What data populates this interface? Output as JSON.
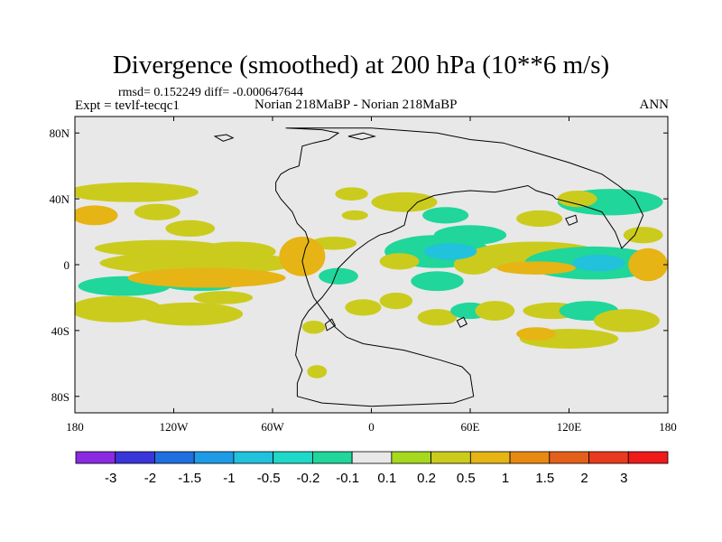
{
  "chart_data": {
    "type": "heatmap",
    "title": "Divergence (smoothed) at 200 hPa (10**6 m/s)",
    "stats_text": "rmsd= 0.152249 diff= -0.000647644",
    "left_label": "Expt = tevlf-tecqc1",
    "center_label": "Norian 218MaBP - Norian 218MaBP",
    "right_label": "ANN",
    "projection": "cylindrical equidistant, 180W to 180E, 90S to 90N",
    "xlim": [
      -180,
      180
    ],
    "ylim": [
      -90,
      90
    ],
    "x_ticks": [
      {
        "value": -180,
        "label": "180"
      },
      {
        "value": -120,
        "label": "120W"
      },
      {
        "value": -60,
        "label": "60W"
      },
      {
        "value": 0,
        "label": "0"
      },
      {
        "value": 60,
        "label": "60E"
      },
      {
        "value": 120,
        "label": "120E"
      },
      {
        "value": 180,
        "label": "180"
      }
    ],
    "y_ticks": [
      {
        "value": 80,
        "label": "80N"
      },
      {
        "value": 40,
        "label": "40N"
      },
      {
        "value": 0,
        "label": "0"
      },
      {
        "value": -40,
        "label": "40S"
      },
      {
        "value": -80,
        "label": "80S"
      }
    ],
    "colorbar": {
      "levels": [
        "-3",
        "-2",
        "-1.5",
        "-1",
        "-0.5",
        "-0.2",
        "-0.1",
        "0.1",
        "0.2",
        "0.5",
        "1",
        "1.5",
        "2",
        "3"
      ],
      "colors": [
        "#8a2be2",
        "#3a35d8",
        "#1f6fe0",
        "#1e9be6",
        "#22c1dc",
        "#1fd8c8",
        "#20d69a",
        "#e8e8e8",
        "#a6d81e",
        "#cbcb1e",
        "#e6b414",
        "#e88a12",
        "#e4601a",
        "#e83a1e",
        "#ef1a1a"
      ]
    },
    "features": [
      {
        "lon": -105,
        "lat": 1,
        "rx": 60,
        "ry": 7,
        "value": 0.2
      },
      {
        "lon": -100,
        "lat": -8,
        "rx": 48,
        "ry": 6,
        "value": 0.5
      },
      {
        "lon": -128,
        "lat": 10,
        "rx": 40,
        "ry": 5,
        "value": 0.2
      },
      {
        "lon": -110,
        "lat": 22,
        "rx": 15,
        "ry": 5,
        "value": 0.2
      },
      {
        "lon": -150,
        "lat": -13,
        "rx": 28,
        "ry": 6,
        "value": -0.2
      },
      {
        "lon": -104,
        "lat": -12,
        "rx": 22,
        "ry": 4,
        "value": -0.2
      },
      {
        "lon": -168,
        "lat": 30,
        "rx": 14,
        "ry": 6,
        "value": 0.5
      },
      {
        "lon": -145,
        "lat": 44,
        "rx": 40,
        "ry": 6,
        "value": 0.2
      },
      {
        "lon": -130,
        "lat": 32,
        "rx": 14,
        "ry": 5,
        "value": 0.2
      },
      {
        "lon": -155,
        "lat": -27,
        "rx": 28,
        "ry": 8,
        "value": 0.2
      },
      {
        "lon": -110,
        "lat": -30,
        "rx": 32,
        "ry": 7,
        "value": 0.2
      },
      {
        "lon": -90,
        "lat": -20,
        "rx": 18,
        "ry": 4,
        "value": 0.2
      },
      {
        "lon": -82,
        "lat": 8,
        "rx": 24,
        "ry": 6,
        "value": 0.2
      },
      {
        "lon": -12,
        "lat": 43,
        "rx": 10,
        "ry": 4,
        "value": 0.2
      },
      {
        "lon": -10,
        "lat": 30,
        "rx": 8,
        "ry": 3,
        "value": 0.2
      },
      {
        "lon": -23,
        "lat": 13,
        "rx": 14,
        "ry": 4,
        "value": 0.2
      },
      {
        "lon": -42,
        "lat": 5,
        "rx": 14,
        "ry": 12,
        "value": 0.5
      },
      {
        "lon": -20,
        "lat": -7,
        "rx": 12,
        "ry": 5,
        "value": -0.2
      },
      {
        "lon": -5,
        "lat": -26,
        "rx": 11,
        "ry": 5,
        "value": 0.2
      },
      {
        "lon": -35,
        "lat": -38,
        "rx": 7,
        "ry": 4,
        "value": 0.2
      },
      {
        "lon": -33,
        "lat": -65,
        "rx": 6,
        "ry": 4,
        "value": 0.2
      },
      {
        "lon": 20,
        "lat": 38,
        "rx": 20,
        "ry": 6,
        "value": 0.2
      },
      {
        "lon": 40,
        "lat": 8,
        "rx": 32,
        "ry": 10,
        "value": -0.2
      },
      {
        "lon": 48,
        "lat": 8,
        "rx": 16,
        "ry": 5,
        "value": -1
      },
      {
        "lon": 60,
        "lat": 18,
        "rx": 22,
        "ry": 6,
        "value": -0.2
      },
      {
        "lon": 45,
        "lat": 30,
        "rx": 14,
        "ry": 5,
        "value": -0.2
      },
      {
        "lon": 17,
        "lat": 2,
        "rx": 12,
        "ry": 5,
        "value": 0.2
      },
      {
        "lon": 62,
        "lat": 0,
        "rx": 12,
        "ry": 6,
        "value": 0.2
      },
      {
        "lon": 40,
        "lat": -10,
        "rx": 16,
        "ry": 6,
        "value": -0.2
      },
      {
        "lon": 15,
        "lat": -22,
        "rx": 10,
        "ry": 5,
        "value": 0.2
      },
      {
        "lon": 40,
        "lat": -32,
        "rx": 12,
        "ry": 5,
        "value": 0.2
      },
      {
        "lon": 60,
        "lat": -28,
        "rx": 12,
        "ry": 5,
        "value": -0.2
      },
      {
        "lon": 75,
        "lat": -28,
        "rx": 12,
        "ry": 6,
        "value": 0.2
      },
      {
        "lon": 100,
        "lat": 5,
        "rx": 42,
        "ry": 9,
        "value": 0.2
      },
      {
        "lon": 100,
        "lat": -2,
        "rx": 24,
        "ry": 4,
        "value": 0.5
      },
      {
        "lon": 135,
        "lat": 1,
        "rx": 42,
        "ry": 10,
        "value": -0.2
      },
      {
        "lon": 138,
        "lat": 1,
        "rx": 16,
        "ry": 5,
        "value": -1
      },
      {
        "lon": 102,
        "lat": 28,
        "rx": 14,
        "ry": 5,
        "value": 0.2
      },
      {
        "lon": 145,
        "lat": 38,
        "rx": 32,
        "ry": 8,
        "value": -0.2
      },
      {
        "lon": 125,
        "lat": 40,
        "rx": 12,
        "ry": 5,
        "value": 0.2
      },
      {
        "lon": 165,
        "lat": 18,
        "rx": 12,
        "ry": 5,
        "value": 0.2
      },
      {
        "lon": 168,
        "lat": 0,
        "rx": 12,
        "ry": 10,
        "value": 0.5
      },
      {
        "lon": 110,
        "lat": -28,
        "rx": 18,
        "ry": 5,
        "value": 0.2
      },
      {
        "lon": 132,
        "lat": -28,
        "rx": 18,
        "ry": 6,
        "value": -0.2
      },
      {
        "lon": 155,
        "lat": -34,
        "rx": 20,
        "ry": 7,
        "value": 0.2
      },
      {
        "lon": 120,
        "lat": -45,
        "rx": 30,
        "ry": 6,
        "value": 0.2
      },
      {
        "lon": 100,
        "lat": -42,
        "rx": 12,
        "ry": 4,
        "value": 0.5
      }
    ],
    "coastlines": [
      {
        "name": "pangea-outline",
        "points": [
          [
            -52,
            83
          ],
          [
            -30,
            82
          ],
          [
            -20,
            80
          ],
          [
            -26,
            76
          ],
          [
            -35,
            74
          ],
          [
            -42,
            72
          ],
          [
            -44,
            60
          ],
          [
            -50,
            58
          ],
          [
            -55,
            55
          ],
          [
            -58,
            50
          ],
          [
            -58,
            45
          ],
          [
            -55,
            40
          ],
          [
            -48,
            32
          ],
          [
            -45,
            25
          ],
          [
            -40,
            20
          ],
          [
            -38,
            14
          ],
          [
            -40,
            10
          ],
          [
            -42,
            2
          ],
          [
            -40,
            -6
          ],
          [
            -38,
            -12
          ],
          [
            -35,
            -20
          ],
          [
            -28,
            -30
          ],
          [
            -22,
            -38
          ],
          [
            -15,
            -44
          ],
          [
            -5,
            -48
          ],
          [
            20,
            -52
          ],
          [
            42,
            -58
          ],
          [
            55,
            -62
          ],
          [
            60,
            -67
          ],
          [
            62,
            -80
          ],
          [
            50,
            -84
          ],
          [
            0,
            -86
          ],
          [
            -30,
            -84
          ],
          [
            -45,
            -80
          ],
          [
            -45,
            -72
          ],
          [
            -42,
            -64
          ],
          [
            -46,
            -55
          ],
          [
            -45,
            -48
          ],
          [
            -44,
            -42
          ],
          [
            -42,
            -34
          ],
          [
            -38,
            -28
          ],
          [
            -30,
            -20
          ],
          [
            -24,
            -12
          ],
          [
            -20,
            -2
          ],
          [
            -10,
            8
          ],
          [
            -2,
            14
          ],
          [
            5,
            18
          ],
          [
            12,
            20
          ],
          [
            20,
            24
          ],
          [
            22,
            32
          ],
          [
            28,
            38
          ],
          [
            38,
            42
          ],
          [
            50,
            44
          ],
          [
            60,
            45
          ],
          [
            75,
            44
          ],
          [
            85,
            46
          ],
          [
            95,
            48
          ],
          [
            100,
            45
          ],
          [
            110,
            42
          ],
          [
            112,
            40
          ],
          [
            128,
            36
          ],
          [
            140,
            32
          ],
          [
            148,
            20
          ],
          [
            152,
            10
          ],
          [
            160,
            18
          ],
          [
            165,
            30
          ],
          [
            160,
            40
          ],
          [
            150,
            48
          ],
          [
            140,
            55
          ],
          [
            120,
            62
          ],
          [
            100,
            68
          ],
          [
            80,
            74
          ],
          [
            60,
            76
          ],
          [
            40,
            80
          ],
          [
            0,
            83
          ],
          [
            -52,
            83
          ]
        ]
      },
      {
        "name": "ne-island",
        "points": [
          [
            -14,
            78
          ],
          [
            -5,
            80
          ],
          [
            2,
            78
          ],
          [
            -6,
            76
          ],
          [
            -14,
            78
          ]
        ]
      },
      {
        "name": "arctic-islet",
        "points": [
          [
            -95,
            78
          ],
          [
            -88,
            79
          ],
          [
            -84,
            77
          ],
          [
            -90,
            75
          ],
          [
            -95,
            78
          ]
        ]
      },
      {
        "name": "southern-islet",
        "points": [
          [
            -28,
            -36
          ],
          [
            -24,
            -33
          ],
          [
            -22,
            -37
          ],
          [
            -27,
            -40
          ],
          [
            -28,
            -36
          ]
        ]
      },
      {
        "name": "eastern-islet",
        "points": [
          [
            52,
            -34
          ],
          [
            56,
            -32
          ],
          [
            58,
            -36
          ],
          [
            54,
            -38
          ],
          [
            52,
            -34
          ]
        ]
      },
      {
        "name": "cathaysia-islet",
        "points": [
          [
            118,
            28
          ],
          [
            124,
            30
          ],
          [
            125,
            26
          ],
          [
            120,
            24
          ],
          [
            118,
            28
          ]
        ]
      }
    ]
  }
}
